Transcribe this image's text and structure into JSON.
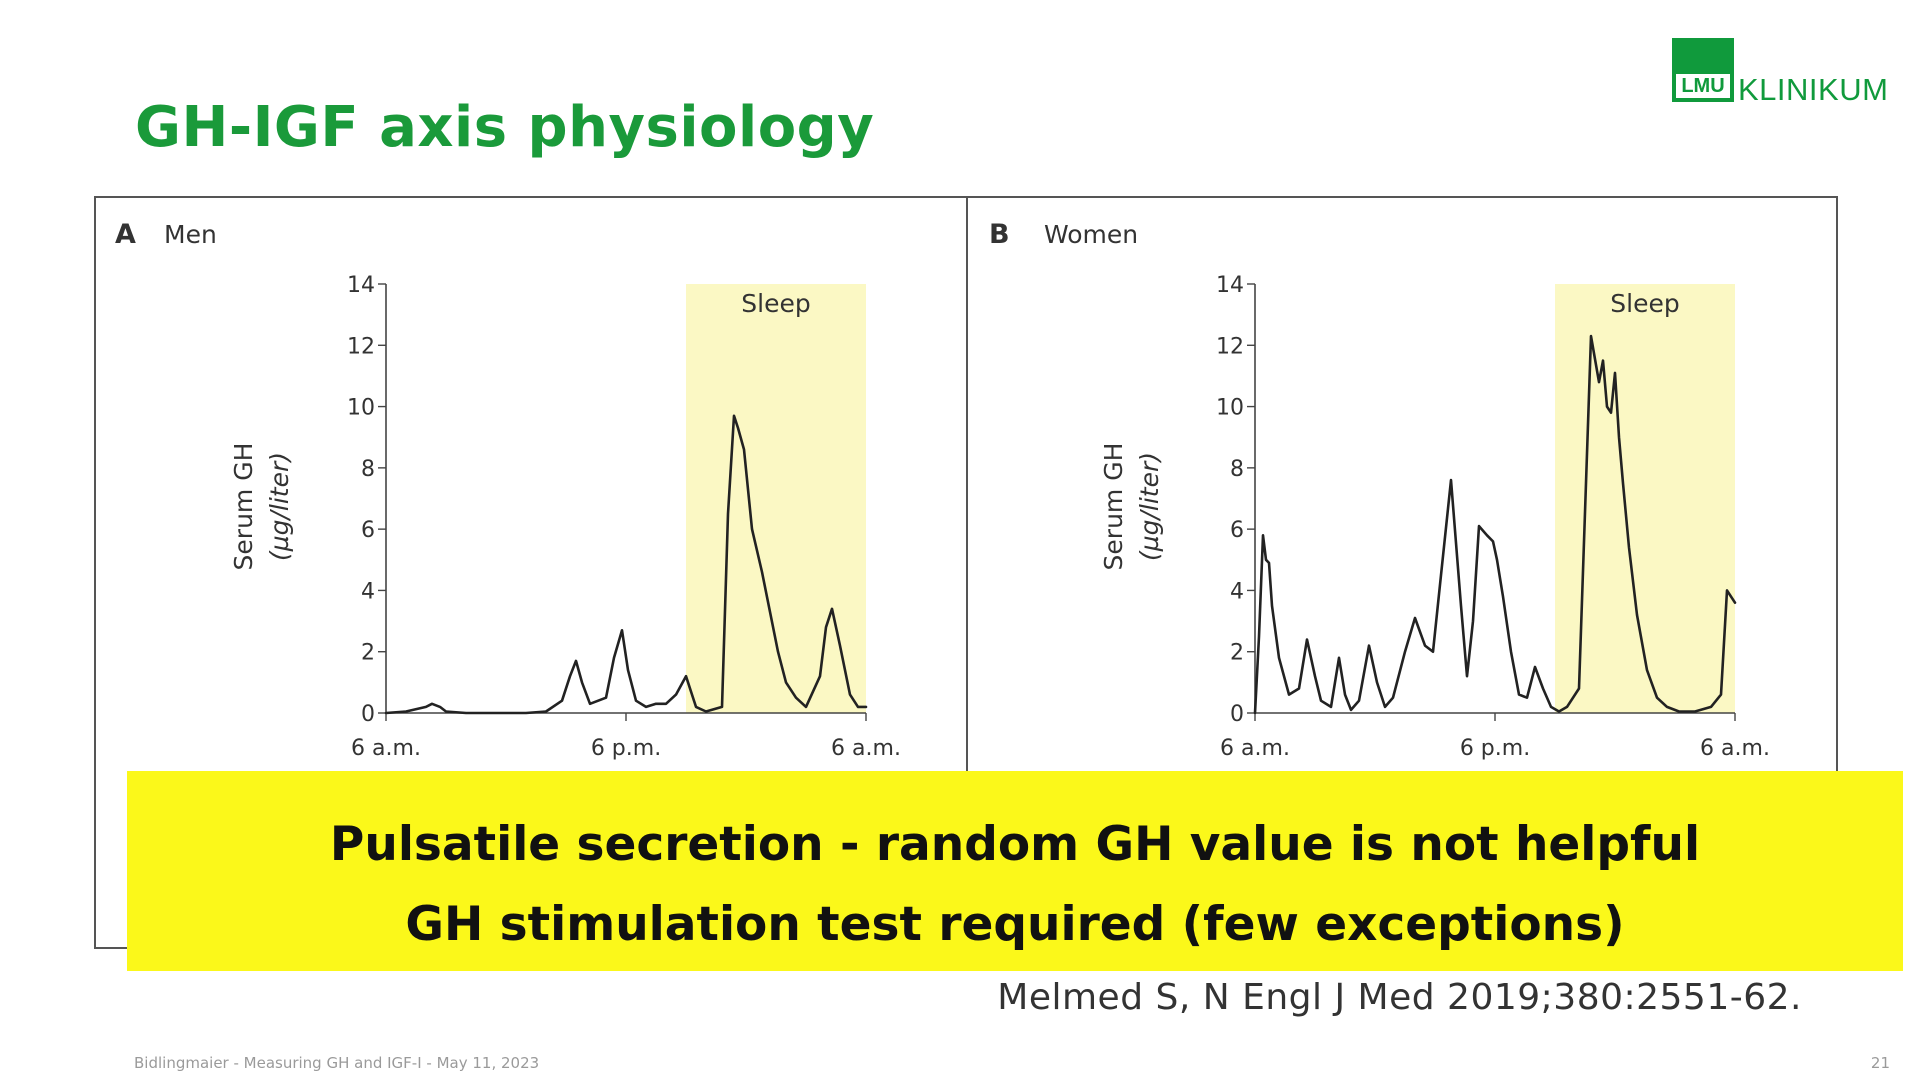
{
  "slide": {
    "title": "GH-IGF axis physiology",
    "footer": "Bidlingmaier - Measuring GH and IGF-I - May 11, 2023",
    "page_number": "21",
    "citation": "Melmed S, N Engl J Med 2019;380:2551-62.",
    "banner_lines": [
      "Pulsatile secretion - random GH value is not helpful",
      "GH stimulation test required (few exceptions)"
    ],
    "banner_color": "#fbf81a",
    "title_color": "#1a9a3a"
  },
  "logo": {
    "mark": "LMU",
    "text": "KLINIKUM",
    "color": "#109a3c"
  },
  "chart_data": [
    {
      "type": "line",
      "panel_letter": "A",
      "panel_title": "Men",
      "ylabel": [
        "Serum GH",
        "(µg/liter)"
      ],
      "ylim": [
        0,
        14
      ],
      "yticks": [
        0,
        2,
        4,
        6,
        8,
        10,
        12,
        14
      ],
      "x_range_hours": [
        0,
        24
      ],
      "xtick_labels": [
        "6 a.m.",
        "6 p.m.",
        "6 a.m."
      ],
      "xtick_hours": [
        0,
        12,
        24
      ],
      "shaded_region": {
        "label": "Sleep",
        "start_hour": 15,
        "end_hour": 24,
        "color": "#fbf8c4"
      },
      "series": [
        {
          "color": "#222222",
          "x": [
            0,
            1,
            2,
            2.3,
            2.7,
            3,
            4,
            5,
            6,
            7,
            8,
            8.8,
            9.2,
            9.5,
            9.8,
            10.2,
            11,
            11.4,
            11.8,
            12.1,
            12.5,
            13,
            13.5,
            14,
            14.5,
            15,
            15.3,
            15.5,
            16,
            16.8,
            17.1,
            17.4,
            17.6,
            17.9,
            18.3,
            18.8,
            19.2,
            19.6,
            20,
            20.5,
            21,
            21.7,
            22,
            22.3,
            22.7,
            23.2,
            23.6,
            24
          ],
          "y": [
            0,
            0.05,
            0.2,
            0.3,
            0.2,
            0.05,
            0,
            0,
            0,
            0,
            0.05,
            0.4,
            1.2,
            1.7,
            1.0,
            0.3,
            0.5,
            1.8,
            2.7,
            1.4,
            0.4,
            0.2,
            0.3,
            0.3,
            0.6,
            1.2,
            0.6,
            0.2,
            0.05,
            0.2,
            6.5,
            9.7,
            9.3,
            8.6,
            6.0,
            4.6,
            3.3,
            2.0,
            1.0,
            0.5,
            0.2,
            1.2,
            2.8,
            3.4,
            2.2,
            0.6,
            0.2,
            0.2
          ]
        }
      ]
    },
    {
      "type": "line",
      "panel_letter": "B",
      "panel_title": "Women",
      "ylabel": [
        "Serum GH",
        "(µg/liter)"
      ],
      "ylim": [
        0,
        14
      ],
      "yticks": [
        0,
        2,
        4,
        6,
        8,
        10,
        12,
        14
      ],
      "x_range_hours": [
        0,
        24
      ],
      "xtick_labels": [
        "6 a.m.",
        "6 p.m.",
        "6 a.m."
      ],
      "xtick_hours": [
        0,
        12,
        24
      ],
      "shaded_region": {
        "label": "Sleep",
        "start_hour": 15,
        "end_hour": 24,
        "color": "#fbf8c4"
      },
      "series": [
        {
          "color": "#222222",
          "x": [
            0,
            0.2,
            0.4,
            0.55,
            0.7,
            0.85,
            1.2,
            1.7,
            2.2,
            2.6,
            3,
            3.3,
            3.8,
            4.2,
            4.5,
            4.8,
            5.2,
            5.7,
            6.1,
            6.5,
            6.9,
            7.5,
            8,
            8.5,
            8.9,
            9.3,
            9.8,
            10.3,
            10.6,
            10.9,
            11.2,
            11.6,
            11.9,
            12.1,
            12.4,
            12.8,
            13.2,
            13.6,
            14,
            14.4,
            14.8,
            15.2,
            15.6,
            16.2,
            16.8,
            17.2,
            17.4,
            17.6,
            17.8,
            18,
            18.2,
            18.4,
            18.7,
            19.1,
            19.6,
            20.1,
            20.6,
            21.2,
            22,
            22.8,
            23.3,
            23.6,
            23.8,
            24
          ],
          "y": [
            0,
            2.5,
            5.8,
            5.0,
            4.9,
            3.5,
            1.8,
            0.6,
            0.8,
            2.4,
            1.2,
            0.4,
            0.2,
            1.8,
            0.6,
            0.1,
            0.4,
            2.2,
            1.0,
            0.2,
            0.5,
            2.0,
            3.1,
            2.2,
            2.0,
            4.5,
            7.6,
            3.5,
            1.2,
            3.0,
            6.1,
            5.8,
            5.6,
            5.0,
            3.8,
            2.0,
            0.6,
            0.5,
            1.5,
            0.8,
            0.2,
            0.05,
            0.2,
            0.8,
            12.3,
            10.8,
            11.5,
            10.0,
            9.8,
            11.1,
            9.0,
            7.5,
            5.4,
            3.2,
            1.4,
            0.5,
            0.2,
            0.05,
            0.05,
            0.2,
            0.6,
            4.0,
            3.8,
            3.6
          ]
        }
      ]
    }
  ]
}
